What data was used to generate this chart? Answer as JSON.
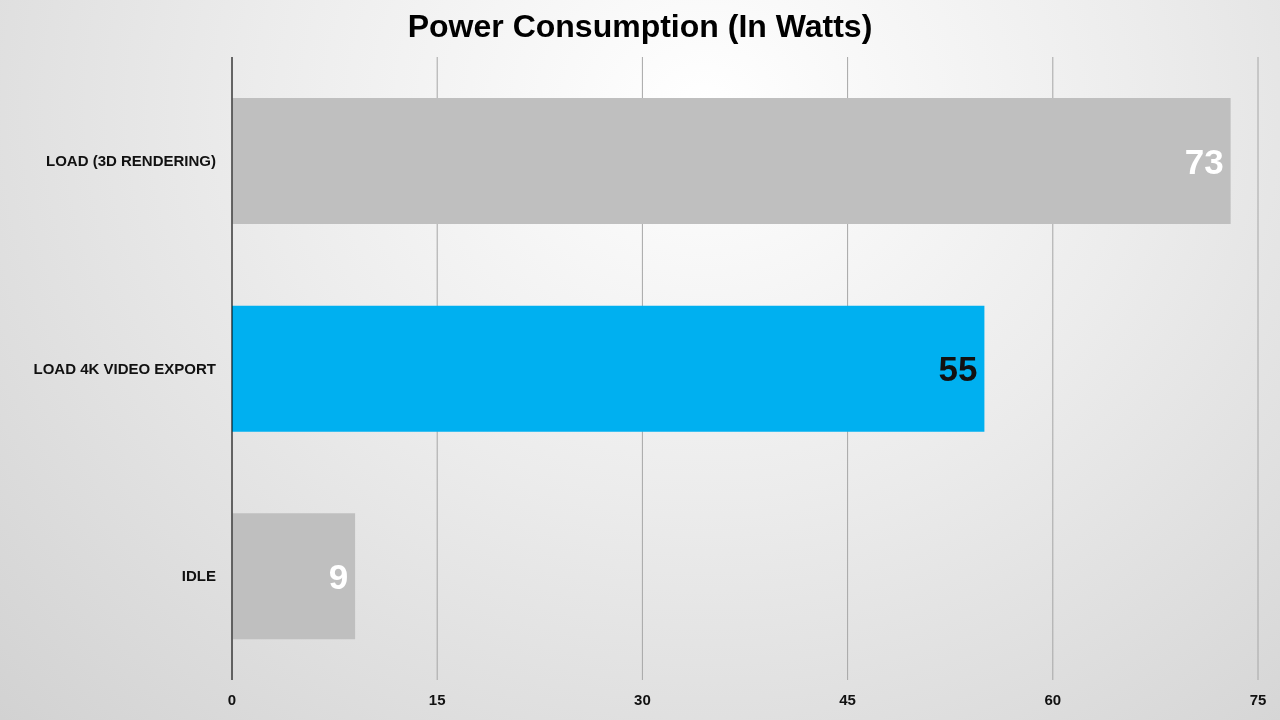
{
  "chart_data": {
    "type": "bar",
    "orientation": "horizontal",
    "title": "Power Consumption (In Watts)",
    "categories": [
      "LOAD (3D RENDERING)",
      "LOAD 4K VIDEO EXPORT",
      "IDLE"
    ],
    "values": [
      73,
      55,
      9
    ],
    "colors": [
      "#bfbfbf",
      "#00b0f0",
      "#bfbfbf"
    ],
    "xlim": [
      0,
      75
    ],
    "xticks": [
      0,
      15,
      30,
      45,
      60,
      75
    ],
    "grid": "x",
    "data_labels": true
  }
}
